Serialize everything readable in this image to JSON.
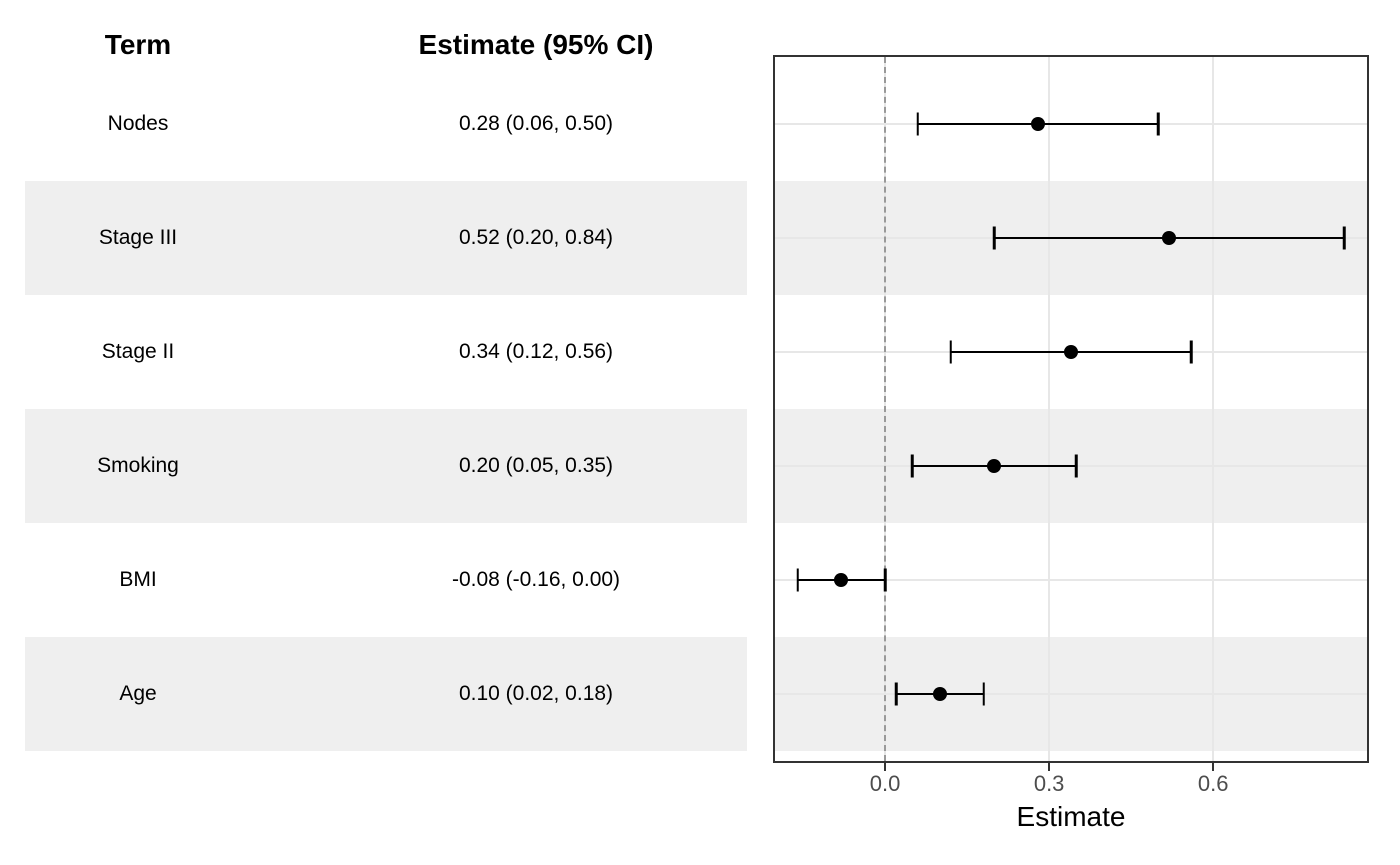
{
  "table": {
    "term_header": "Term",
    "estimate_header": "Estimate (95% CI)"
  },
  "colors": {
    "stripe": "#efefef",
    "gridline": "#e7e7e7",
    "reference_line": "#999999",
    "panel_border": "#333333",
    "marker": "#000000",
    "tick_label": "#4d4d4d"
  },
  "chart_data": {
    "type": "forest",
    "title": "",
    "xlabel": "Estimate",
    "ylabel": "",
    "xlim": [
      -0.205,
      0.885
    ],
    "x_ticks": [
      0.0,
      0.3,
      0.6
    ],
    "x_tick_labels": [
      "0.0",
      "0.3",
      "0.6"
    ],
    "reference_line_x": 0.0,
    "grid": "major",
    "legend_position": "none",
    "categories": [
      "Nodes",
      "Stage III",
      "Stage II",
      "Smoking",
      "BMI",
      "Age"
    ],
    "rows": [
      {
        "term": "Nodes",
        "label": "0.28 (0.06, 0.50)",
        "estimate": 0.28,
        "ci_low": 0.06,
        "ci_high": 0.5
      },
      {
        "term": "Stage III",
        "label": "0.52 (0.20, 0.84)",
        "estimate": 0.52,
        "ci_low": 0.2,
        "ci_high": 0.84
      },
      {
        "term": "Stage II",
        "label": "0.34 (0.12, 0.56)",
        "estimate": 0.34,
        "ci_low": 0.12,
        "ci_high": 0.56
      },
      {
        "term": "Smoking",
        "label": "0.20 (0.05, 0.35)",
        "estimate": 0.2,
        "ci_low": 0.05,
        "ci_high": 0.35
      },
      {
        "term": "BMI",
        "label": "-0.08 (-0.16, 0.00)",
        "estimate": -0.08,
        "ci_low": -0.16,
        "ci_high": 0.0
      },
      {
        "term": "Age",
        "label": "0.10 (0.02, 0.18)",
        "estimate": 0.1,
        "ci_low": 0.02,
        "ci_high": 0.18
      }
    ]
  }
}
